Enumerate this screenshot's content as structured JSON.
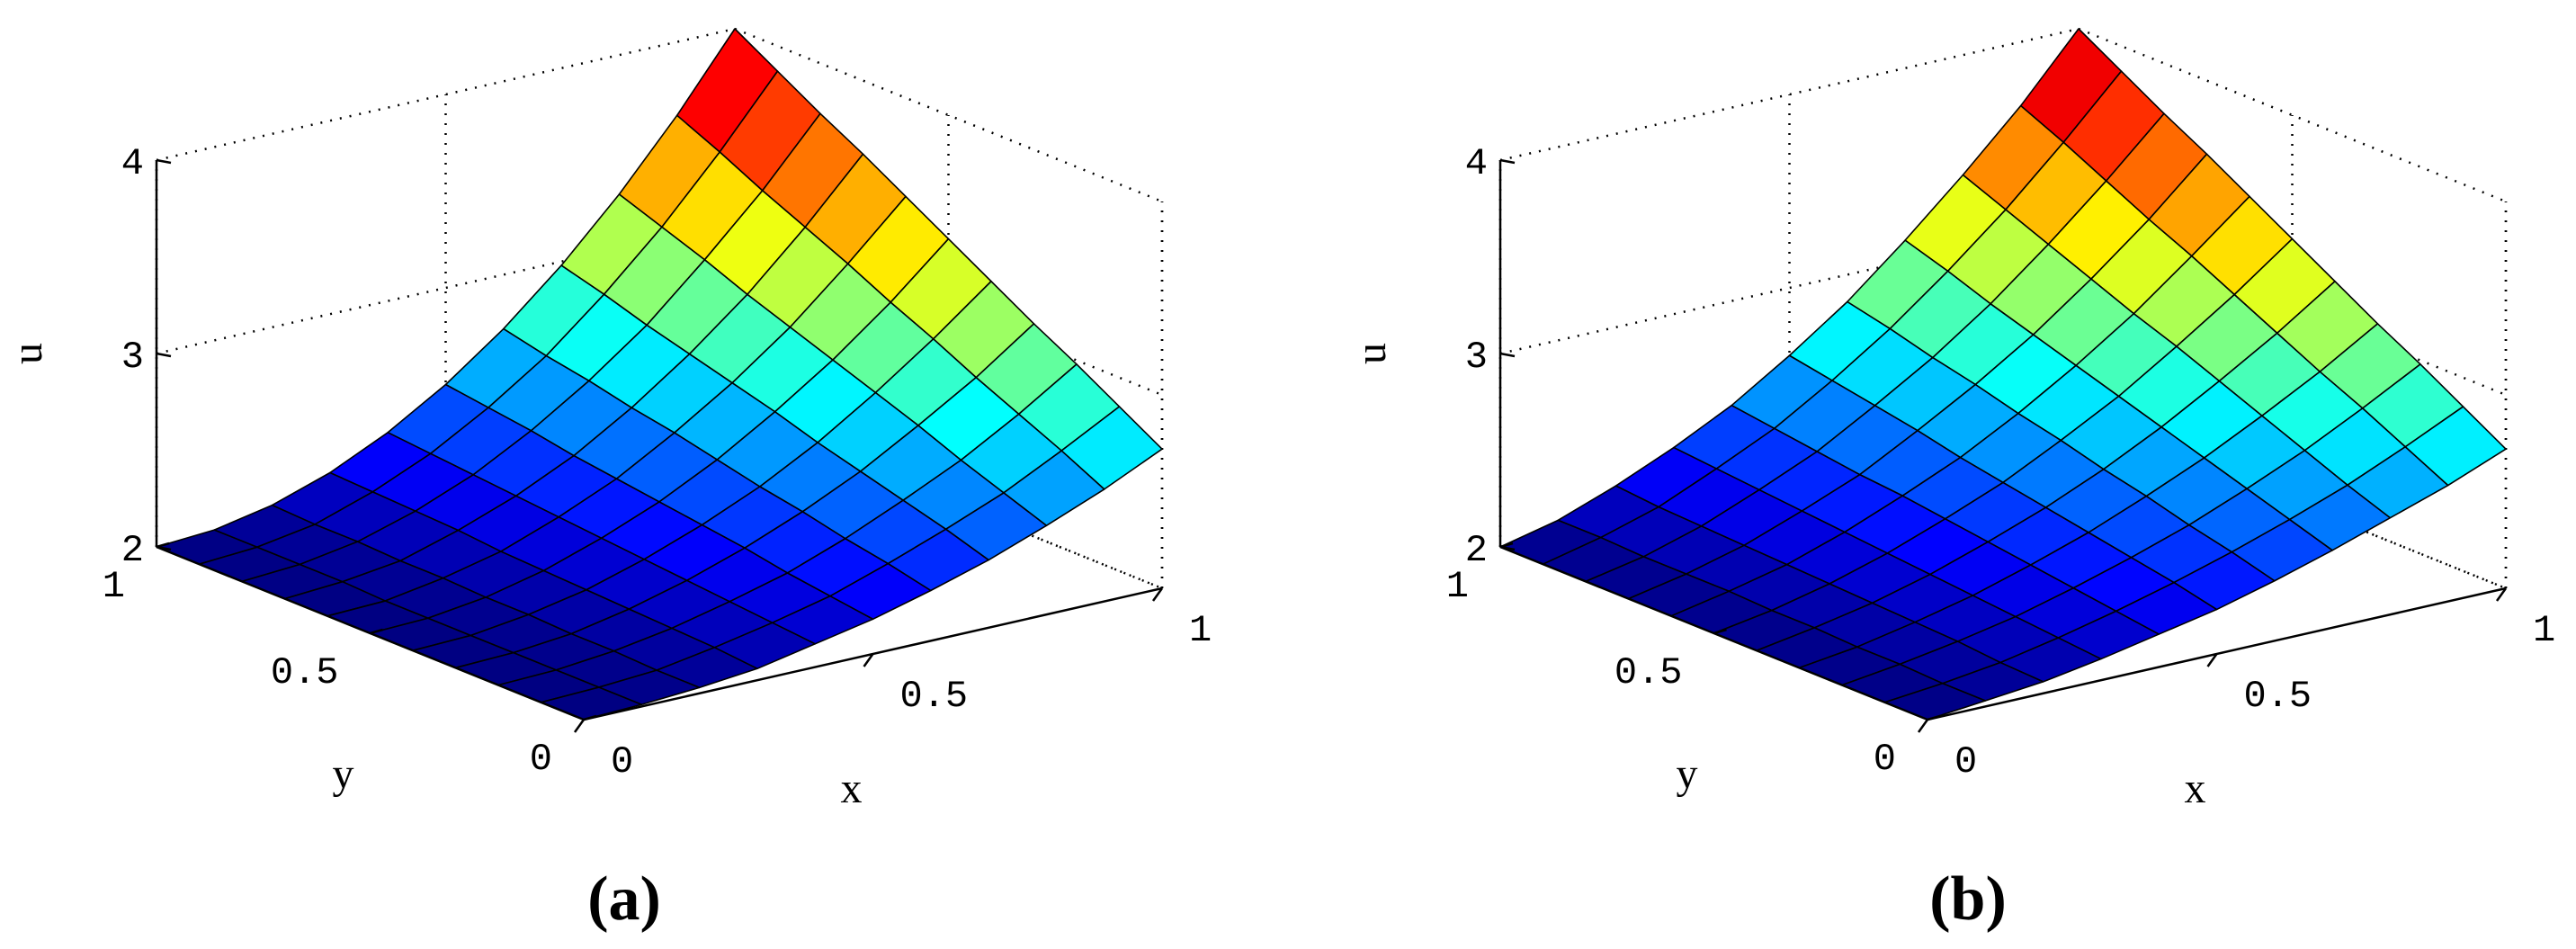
{
  "chart_data": [
    {
      "type": "surface",
      "caption": "(a)",
      "xlabel": "x",
      "ylabel": "y",
      "zlabel": "u",
      "colormap": "jet",
      "x": [
        0,
        0.1,
        0.2,
        0.3,
        0.4,
        0.5,
        0.6,
        0.7,
        0.8,
        0.9,
        1
      ],
      "y": [
        0,
        0.1,
        0.2,
        0.3,
        0.4,
        0.5,
        0.6,
        0.7,
        0.8,
        0.9,
        1
      ],
      "z": [
        [
          2,
          2.01,
          2.03,
          2.06,
          2.12,
          2.18,
          2.26,
          2.35,
          2.46,
          2.58,
          2.72
        ],
        [
          2,
          2.01,
          2.03,
          2.08,
          2.14,
          2.21,
          2.31,
          2.42,
          2.54,
          2.69,
          2.85
        ],
        [
          2,
          2.01,
          2.04,
          2.09,
          2.16,
          2.24,
          2.35,
          2.48,
          2.62,
          2.79,
          2.98
        ],
        [
          2,
          2.01,
          2.04,
          2.1,
          2.18,
          2.28,
          2.4,
          2.54,
          2.71,
          2.89,
          3.1
        ],
        [
          2,
          2.01,
          2.05,
          2.11,
          2.2,
          2.31,
          2.44,
          2.6,
          2.79,
          3,
          3.23
        ],
        [
          2,
          2.01,
          2.05,
          2.12,
          2.22,
          2.34,
          2.49,
          2.67,
          2.87,
          3.1,
          3.36
        ],
        [
          2,
          2.01,
          2.06,
          2.13,
          2.24,
          2.37,
          2.54,
          2.73,
          2.95,
          3.21,
          3.49
        ],
        [
          2,
          2.02,
          2.06,
          2.15,
          2.26,
          2.4,
          2.58,
          2.79,
          3.03,
          3.31,
          3.62
        ],
        [
          2,
          2.02,
          2.07,
          2.16,
          2.28,
          2.44,
          2.63,
          2.85,
          3.12,
          3.41,
          3.74
        ],
        [
          2,
          2.02,
          2.07,
          2.17,
          2.3,
          2.47,
          2.67,
          2.92,
          3.2,
          3.52,
          3.87
        ],
        [
          2,
          2.02,
          2.08,
          2.18,
          2.32,
          2.5,
          2.72,
          2.98,
          3.28,
          3.62,
          4
        ]
      ],
      "xlim": [
        0,
        1
      ],
      "ylim": [
        0,
        1
      ],
      "zlim": [
        2,
        4
      ],
      "xticks": [
        0,
        0.5,
        1
      ],
      "yticks": [
        0,
        0.5,
        1
      ],
      "zticks": [
        2,
        3,
        4
      ],
      "grid": true
    },
    {
      "type": "surface",
      "caption": "(b)",
      "xlabel": "x",
      "ylabel": "y",
      "zlabel": "u",
      "colormap": "jet",
      "x": [
        0,
        0.1,
        0.2,
        0.3,
        0.4,
        0.5,
        0.6,
        0.7,
        0.8,
        0.9,
        1
      ],
      "y": [
        0,
        0.1,
        0.2,
        0.3,
        0.4,
        0.5,
        0.6,
        0.7,
        0.8,
        0.9,
        1
      ],
      "z": [
        [
          2,
          2.03,
          2.06,
          2.11,
          2.17,
          2.23,
          2.31,
          2.4,
          2.5,
          2.6,
          2.72
        ],
        [
          2,
          2.03,
          2.07,
          2.13,
          2.2,
          2.28,
          2.37,
          2.47,
          2.58,
          2.71,
          2.85
        ],
        [
          2,
          2.04,
          2.09,
          2.15,
          2.23,
          2.32,
          2.42,
          2.54,
          2.67,
          2.82,
          2.98
        ],
        [
          2,
          2.04,
          2.1,
          2.17,
          2.26,
          2.36,
          2.48,
          2.61,
          2.76,
          2.92,
          3.1
        ],
        [
          2,
          2.05,
          2.11,
          2.19,
          2.29,
          2.4,
          2.53,
          2.68,
          2.85,
          3.03,
          3.23
        ],
        [
          2,
          2.05,
          2.12,
          2.21,
          2.32,
          2.44,
          2.59,
          2.75,
          2.94,
          3.14,
          3.36
        ],
        [
          2,
          2.06,
          2.13,
          2.23,
          2.35,
          2.48,
          2.64,
          2.82,
          3.02,
          3.25,
          3.49
        ],
        [
          2,
          2.06,
          2.14,
          2.25,
          2.37,
          2.53,
          2.7,
          2.89,
          3.11,
          3.35,
          3.62
        ],
        [
          2,
          2.06,
          2.15,
          2.27,
          2.4,
          2.57,
          2.75,
          2.96,
          3.2,
          3.46,
          3.74
        ],
        [
          2,
          2.07,
          2.16,
          2.29,
          2.43,
          2.61,
          2.81,
          3.04,
          3.29,
          3.57,
          3.87
        ],
        [
          2,
          2.07,
          2.18,
          2.31,
          2.46,
          2.65,
          2.86,
          3.11,
          3.38,
          3.67,
          4
        ]
      ],
      "xlim": [
        0,
        1
      ],
      "ylim": [
        0,
        1
      ],
      "zlim": [
        2,
        4
      ],
      "xticks": [
        0,
        0.5,
        1
      ],
      "yticks": [
        0,
        0.5,
        1
      ],
      "zticks": [
        2,
        3,
        4
      ],
      "grid": true
    }
  ]
}
